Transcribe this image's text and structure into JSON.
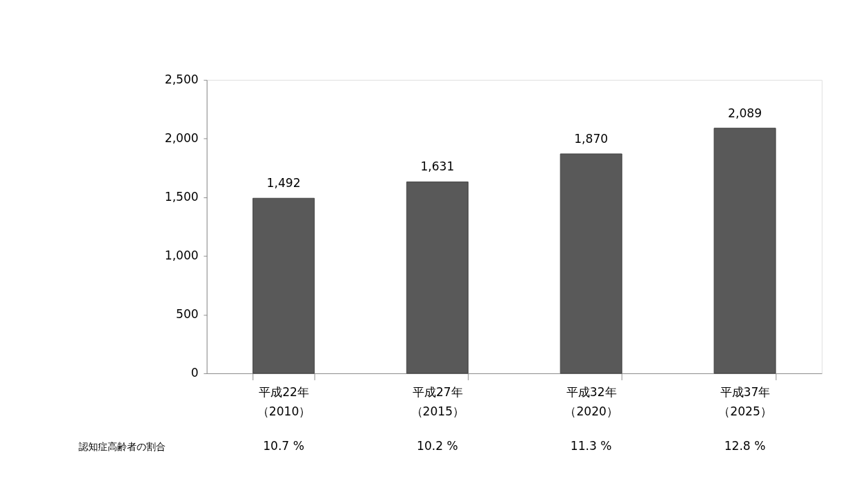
{
  "chart_data": {
    "type": "bar",
    "categories": [
      "平成22年（2010）",
      "平成27年（2015）",
      "平成32年（2020）",
      "平成37年（2025）"
    ],
    "values": [
      1492,
      1631,
      1870,
      2089
    ],
    "value_labels": [
      "1,492",
      "1,631",
      "1,870",
      "2,089"
    ],
    "color": "#595959",
    "ylim": [
      0,
      2500
    ],
    "yticks": [
      0,
      {
        "value": 500,
        "label": "500"
      },
      {
        "value": 1000,
        "label": "1,000"
      },
      {
        "value": 1500,
        "label": "1,500"
      },
      {
        "value": 2000,
        "label": "2,000"
      },
      {
        "value": 2500,
        "label": "2,500"
      }
    ],
    "grid": false,
    "annotations": [
      "認知症高齢者の割合",
      "10.7 %",
      "10.2 %",
      "11.3 %",
      "12.8 %"
    ]
  }
}
